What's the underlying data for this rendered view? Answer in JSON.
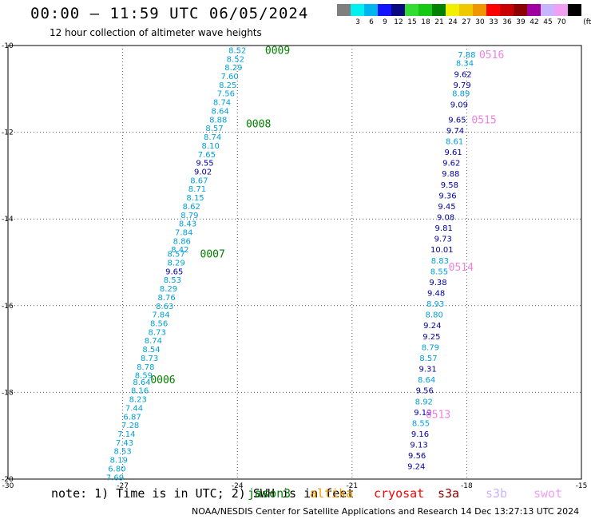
{
  "title": "00:00 – 11:59 UTC 06/05/2024",
  "subtitle": "12 hour collection of altimeter wave heights",
  "colorbar": {
    "unit": "(ft)",
    "swatches": [
      {
        "color": "#7f7f7f",
        "label": ""
      },
      {
        "color": "#00f0f0",
        "label": "3"
      },
      {
        "color": "#00b4f0",
        "label": "6"
      },
      {
        "color": "#1414ff",
        "label": "9"
      },
      {
        "color": "#0a0a80",
        "label": "12"
      },
      {
        "color": "#32dc32",
        "label": "15"
      },
      {
        "color": "#14c814",
        "label": "18"
      },
      {
        "color": "#008200",
        "label": "21"
      },
      {
        "color": "#f0f000",
        "label": "24"
      },
      {
        "color": "#f0c800",
        "label": "27"
      },
      {
        "color": "#f09600",
        "label": "30"
      },
      {
        "color": "#ff0000",
        "label": "33"
      },
      {
        "color": "#c80000",
        "label": "36"
      },
      {
        "color": "#8c0000",
        "label": "39"
      },
      {
        "color": "#a000a0",
        "label": "42"
      },
      {
        "color": "#c8b4ff",
        "label": "45"
      },
      {
        "color": "#f0a0f0",
        "label": "70"
      },
      {
        "color": "#000000",
        "label": ""
      }
    ]
  },
  "axes": {
    "x_ticks": [
      "-30",
      "-27",
      "-24",
      "-21",
      "-18",
      "-15"
    ],
    "y_ticks": [
      "-10",
      "-12",
      "-14",
      "-16",
      "-18",
      "-20"
    ]
  },
  "colors": {
    "cyan": "#00a0d8",
    "navy": "#0000a0",
    "green": "#008200",
    "pink": "#f080e0"
  },
  "passes": [
    {
      "label": "0009",
      "lon": -23.4,
      "lat": -10.1,
      "color": "green"
    },
    {
      "label": "0008",
      "lon": -23.9,
      "lat": -11.8,
      "color": "green"
    },
    {
      "label": "0007",
      "lon": -25.1,
      "lat": -14.8,
      "color": "green"
    },
    {
      "label": "0006",
      "lon": -26.4,
      "lat": -17.7,
      "color": "green"
    },
    {
      "label": "0516",
      "lon": -17.8,
      "lat": -10.2,
      "color": "pink"
    },
    {
      "label": "0515",
      "lon": -18.0,
      "lat": -11.7,
      "color": "pink"
    },
    {
      "label": "0514",
      "lon": -18.6,
      "lat": -15.1,
      "color": "pink"
    },
    {
      "label": "0513",
      "lon": -19.2,
      "lat": -18.5,
      "color": "pink"
    }
  ],
  "track_west": [
    {
      "v": "8.52",
      "c": "cyan",
      "lon": -24.0,
      "lat": -10.1
    },
    {
      "v": "8.52",
      "c": "cyan",
      "lon": -24.05,
      "lat": -10.3
    },
    {
      "v": "8.29",
      "c": "cyan",
      "lon": -24.1,
      "lat": -10.5
    },
    {
      "v": "7.60",
      "c": "cyan",
      "lon": -24.2,
      "lat": -10.7
    },
    {
      "v": "8.25",
      "c": "cyan",
      "lon": -24.25,
      "lat": -10.9
    },
    {
      "v": "7.56",
      "c": "cyan",
      "lon": -24.3,
      "lat": -11.1
    },
    {
      "v": "8.74",
      "c": "cyan",
      "lon": -24.4,
      "lat": -11.3
    },
    {
      "v": "8.64",
      "c": "cyan",
      "lon": -24.45,
      "lat": -11.5
    },
    {
      "v": "8.88",
      "c": "cyan",
      "lon": -24.5,
      "lat": -11.7
    },
    {
      "v": "8.57",
      "c": "cyan",
      "lon": -24.6,
      "lat": -11.9
    },
    {
      "v": "8.74",
      "c": "cyan",
      "lon": -24.65,
      "lat": -12.1
    },
    {
      "v": "8.10",
      "c": "cyan",
      "lon": -24.7,
      "lat": -12.3
    },
    {
      "v": "7.65",
      "c": "cyan",
      "lon": -24.8,
      "lat": -12.5
    },
    {
      "v": "9.55",
      "c": "navy",
      "lon": -24.85,
      "lat": -12.7
    },
    {
      "v": "9.02",
      "c": "navy",
      "lon": -24.9,
      "lat": -12.9
    },
    {
      "v": "8.67",
      "c": "cyan",
      "lon": -25.0,
      "lat": -13.1
    },
    {
      "v": "8.71",
      "c": "cyan",
      "lon": -25.05,
      "lat": -13.3
    },
    {
      "v": "8.15",
      "c": "cyan",
      "lon": -25.1,
      "lat": -13.5
    },
    {
      "v": "8.62",
      "c": "cyan",
      "lon": -25.2,
      "lat": -13.7
    },
    {
      "v": "8.79",
      "c": "cyan",
      "lon": -25.25,
      "lat": -13.9
    },
    {
      "v": "8.43",
      "c": "cyan",
      "lon": -25.3,
      "lat": -14.1
    },
    {
      "v": "7.84",
      "c": "cyan",
      "lon": -25.4,
      "lat": -14.3
    },
    {
      "v": "8.86",
      "c": "cyan",
      "lon": -25.45,
      "lat": -14.5
    },
    {
      "v": "8.42",
      "c": "cyan",
      "lon": -25.5,
      "lat": -14.7
    },
    {
      "v": "8.57",
      "c": "cyan",
      "lon": -25.6,
      "lat": -14.8
    },
    {
      "v": "8.29",
      "c": "cyan",
      "lon": -25.6,
      "lat": -15.0
    },
    {
      "v": "9.65",
      "c": "navy",
      "lon": -25.65,
      "lat": -15.2
    },
    {
      "v": "8.53",
      "c": "cyan",
      "lon": -25.7,
      "lat": -15.4
    },
    {
      "v": "8.29",
      "c": "cyan",
      "lon": -25.8,
      "lat": -15.6
    },
    {
      "v": "8.76",
      "c": "cyan",
      "lon": -25.85,
      "lat": -15.8
    },
    {
      "v": "8.63",
      "c": "cyan",
      "lon": -25.9,
      "lat": -16.0
    },
    {
      "v": "7.84",
      "c": "cyan",
      "lon": -26.0,
      "lat": -16.2
    },
    {
      "v": "8.56",
      "c": "cyan",
      "lon": -26.05,
      "lat": -16.4
    },
    {
      "v": "8.73",
      "c": "cyan",
      "lon": -26.1,
      "lat": -16.6
    },
    {
      "v": "8.74",
      "c": "cyan",
      "lon": -26.2,
      "lat": -16.8
    },
    {
      "v": "8.54",
      "c": "cyan",
      "lon": -26.25,
      "lat": -17.0
    },
    {
      "v": "8.73",
      "c": "cyan",
      "lon": -26.3,
      "lat": -17.2
    },
    {
      "v": "8.78",
      "c": "cyan",
      "lon": -26.4,
      "lat": -17.4
    },
    {
      "v": "8.59",
      "c": "cyan",
      "lon": -26.45,
      "lat": -17.6
    },
    {
      "v": "8.64",
      "c": "cyan",
      "lon": -26.5,
      "lat": -17.75
    },
    {
      "v": "8.16",
      "c": "cyan",
      "lon": -26.55,
      "lat": -17.95
    },
    {
      "v": "8.23",
      "c": "cyan",
      "lon": -26.6,
      "lat": -18.15
    },
    {
      "v": "7.44",
      "c": "cyan",
      "lon": -26.7,
      "lat": -18.35
    },
    {
      "v": "6.87",
      "c": "cyan",
      "lon": -26.75,
      "lat": -18.55
    },
    {
      "v": "7.28",
      "c": "cyan",
      "lon": -26.8,
      "lat": -18.75
    },
    {
      "v": "7.14",
      "c": "cyan",
      "lon": -26.9,
      "lat": -18.95
    },
    {
      "v": "7.43",
      "c": "cyan",
      "lon": -26.95,
      "lat": -19.15
    },
    {
      "v": "8.53",
      "c": "cyan",
      "lon": -27.0,
      "lat": -19.35
    },
    {
      "v": "8.19",
      "c": "cyan",
      "lon": -27.1,
      "lat": -19.55
    },
    {
      "v": "6.80",
      "c": "cyan",
      "lon": -27.15,
      "lat": -19.75
    },
    {
      "v": "7.69",
      "c": "cyan",
      "lon": -27.2,
      "lat": -19.95
    }
  ],
  "track_east": [
    {
      "v": "7.88",
      "c": "cyan",
      "lon": -18.0,
      "lat": -10.2
    },
    {
      "v": "8.34",
      "c": "cyan",
      "lon": -18.05,
      "lat": -10.4
    },
    {
      "v": "9.62",
      "c": "navy",
      "lon": -18.1,
      "lat": -10.65
    },
    {
      "v": "9.79",
      "c": "navy",
      "lon": -18.12,
      "lat": -10.9
    },
    {
      "v": "8.89",
      "c": "cyan",
      "lon": -18.15,
      "lat": -11.1
    },
    {
      "v": "9.09",
      "c": "navy",
      "lon": -18.2,
      "lat": -11.35
    },
    {
      "v": "9.65",
      "c": "navy",
      "lon": -18.25,
      "lat": -11.7
    },
    {
      "v": "9.74",
      "c": "navy",
      "lon": -18.3,
      "lat": -11.95
    },
    {
      "v": "8.61",
      "c": "cyan",
      "lon": -18.32,
      "lat": -12.2
    },
    {
      "v": "9.61",
      "c": "navy",
      "lon": -18.35,
      "lat": -12.45
    },
    {
      "v": "9.62",
      "c": "navy",
      "lon": -18.4,
      "lat": -12.7
    },
    {
      "v": "9.88",
      "c": "navy",
      "lon": -18.42,
      "lat": -12.95
    },
    {
      "v": "9.58",
      "c": "navy",
      "lon": -18.45,
      "lat": -13.2
    },
    {
      "v": "9.36",
      "c": "navy",
      "lon": -18.5,
      "lat": -13.45
    },
    {
      "v": "9.45",
      "c": "navy",
      "lon": -18.52,
      "lat": -13.7
    },
    {
      "v": "9.08",
      "c": "navy",
      "lon": -18.55,
      "lat": -13.95
    },
    {
      "v": "9.81",
      "c": "navy",
      "lon": -18.6,
      "lat": -14.2
    },
    {
      "v": "9.73",
      "c": "navy",
      "lon": -18.62,
      "lat": -14.45
    },
    {
      "v": "10.01",
      "c": "navy",
      "lon": -18.65,
      "lat": -14.7
    },
    {
      "v": "8.83",
      "c": "cyan",
      "lon": -18.7,
      "lat": -14.95
    },
    {
      "v": "8.55",
      "c": "cyan",
      "lon": -18.72,
      "lat": -15.2
    },
    {
      "v": "9.38",
      "c": "navy",
      "lon": -18.75,
      "lat": -15.45
    },
    {
      "v": "9.48",
      "c": "navy",
      "lon": -18.8,
      "lat": -15.7
    },
    {
      "v": "8.93",
      "c": "cyan",
      "lon": -18.82,
      "lat": -15.95
    },
    {
      "v": "8.80",
      "c": "cyan",
      "lon": -18.85,
      "lat": -16.2
    },
    {
      "v": "9.24",
      "c": "navy",
      "lon": -18.9,
      "lat": -16.45
    },
    {
      "v": "9.25",
      "c": "navy",
      "lon": -18.92,
      "lat": -16.7
    },
    {
      "v": "8.79",
      "c": "cyan",
      "lon": -18.95,
      "lat": -16.95
    },
    {
      "v": "8.57",
      "c": "cyan",
      "lon": -19.0,
      "lat": -17.2
    },
    {
      "v": "9.31",
      "c": "navy",
      "lon": -19.02,
      "lat": -17.45
    },
    {
      "v": "8.64",
      "c": "cyan",
      "lon": -19.05,
      "lat": -17.7
    },
    {
      "v": "9.56",
      "c": "navy",
      "lon": -19.1,
      "lat": -17.95
    },
    {
      "v": "8.92",
      "c": "cyan",
      "lon": -19.12,
      "lat": -18.2
    },
    {
      "v": "9.19",
      "c": "navy",
      "lon": -19.15,
      "lat": -18.45
    },
    {
      "v": "8.55",
      "c": "cyan",
      "lon": -19.2,
      "lat": -18.7
    },
    {
      "v": "9.16",
      "c": "navy",
      "lon": -19.22,
      "lat": -18.95
    },
    {
      "v": "9.13",
      "c": "navy",
      "lon": -19.25,
      "lat": -19.2
    },
    {
      "v": "9.56",
      "c": "navy",
      "lon": -19.3,
      "lat": -19.45
    },
    {
      "v": "9.24",
      "c": "navy",
      "lon": -19.32,
      "lat": -19.7
    }
  ],
  "note": {
    "prefix": "note: 1) Time is in UTC; 2) SWH is in feet",
    "sats": [
      {
        "name": "jason3",
        "color": "#008200"
      },
      {
        "name": "altika",
        "color": "#f09600"
      },
      {
        "name": "cryosat",
        "color": "#ff0000"
      },
      {
        "name": "s3a",
        "color": "#8c0000"
      },
      {
        "name": "s3b",
        "color": "#c8b4ff"
      },
      {
        "name": "swot",
        "color": "#f0a0f0"
      }
    ]
  },
  "credit": "NOAA/NESDIS Center for Satellite Applications and Research   14 Dec 13:27:13 UTC 2024"
}
